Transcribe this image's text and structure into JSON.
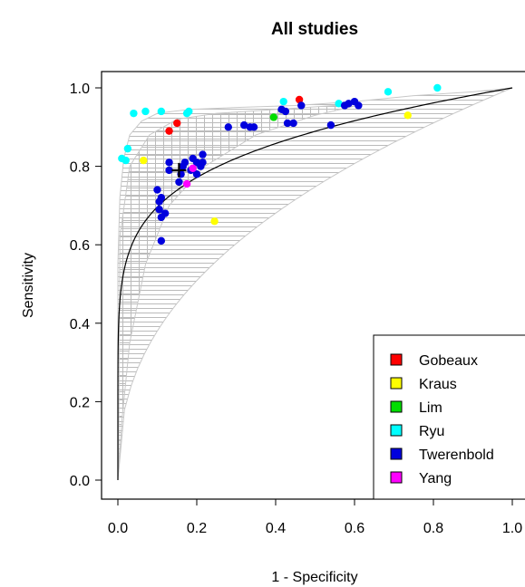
{
  "chart_data": {
    "type": "scatter",
    "title": "All studies",
    "xlabel": "1 - Specificity",
    "ylabel": "Sensitivity",
    "xlim": [
      0,
      1
    ],
    "ylim": [
      0,
      1
    ],
    "xticks": [
      "0.0",
      "0.2",
      "0.4",
      "0.6",
      "0.8",
      "1.0"
    ],
    "yticks": [
      "0.0",
      "0.2",
      "0.4",
      "0.6",
      "0.8",
      "1.0"
    ],
    "grid": false,
    "legend_position": "bottom-right",
    "series": [
      {
        "name": "Gobeaux",
        "color": "#ff0000",
        "points": [
          [
            0.13,
            0.89
          ],
          [
            0.15,
            0.91
          ],
          [
            0.46,
            0.97
          ]
        ]
      },
      {
        "name": "Kraus",
        "color": "#ffff00",
        "points": [
          [
            0.065,
            0.815
          ],
          [
            0.245,
            0.66
          ],
          [
            0.735,
            0.93
          ]
        ]
      },
      {
        "name": "Lim",
        "color": "#00dd00",
        "points": [
          [
            0.395,
            0.925
          ]
        ]
      },
      {
        "name": "Ryu",
        "color": "#00ffff",
        "points": [
          [
            0.01,
            0.82
          ],
          [
            0.02,
            0.815
          ],
          [
            0.025,
            0.845
          ],
          [
            0.04,
            0.935
          ],
          [
            0.07,
            0.94
          ],
          [
            0.11,
            0.94
          ],
          [
            0.175,
            0.935
          ],
          [
            0.18,
            0.94
          ],
          [
            0.42,
            0.965
          ],
          [
            0.56,
            0.96
          ],
          [
            0.685,
            0.99
          ],
          [
            0.81,
            1.0
          ]
        ]
      },
      {
        "name": "Twerenbold",
        "color": "#0000dd",
        "points": [
          [
            0.1,
            0.74
          ],
          [
            0.105,
            0.71
          ],
          [
            0.11,
            0.72
          ],
          [
            0.105,
            0.69
          ],
          [
            0.11,
            0.67
          ],
          [
            0.12,
            0.68
          ],
          [
            0.11,
            0.61
          ],
          [
            0.13,
            0.79
          ],
          [
            0.13,
            0.81
          ],
          [
            0.155,
            0.76
          ],
          [
            0.16,
            0.78
          ],
          [
            0.165,
            0.8
          ],
          [
            0.17,
            0.81
          ],
          [
            0.185,
            0.79
          ],
          [
            0.19,
            0.82
          ],
          [
            0.2,
            0.78
          ],
          [
            0.2,
            0.81
          ],
          [
            0.21,
            0.8
          ],
          [
            0.215,
            0.83
          ],
          [
            0.215,
            0.81
          ],
          [
            0.28,
            0.9
          ],
          [
            0.32,
            0.905
          ],
          [
            0.335,
            0.9
          ],
          [
            0.345,
            0.9
          ],
          [
            0.415,
            0.945
          ],
          [
            0.425,
            0.94
          ],
          [
            0.43,
            0.91
          ],
          [
            0.445,
            0.91
          ],
          [
            0.465,
            0.955
          ],
          [
            0.54,
            0.905
          ],
          [
            0.575,
            0.955
          ],
          [
            0.585,
            0.96
          ],
          [
            0.6,
            0.965
          ],
          [
            0.61,
            0.955
          ]
        ]
      },
      {
        "name": "Yang",
        "color": "#ff00ff",
        "points": [
          [
            0.175,
            0.755
          ],
          [
            0.19,
            0.795
          ]
        ]
      }
    ],
    "summary_point": [
      0.155,
      0.79
    ]
  }
}
